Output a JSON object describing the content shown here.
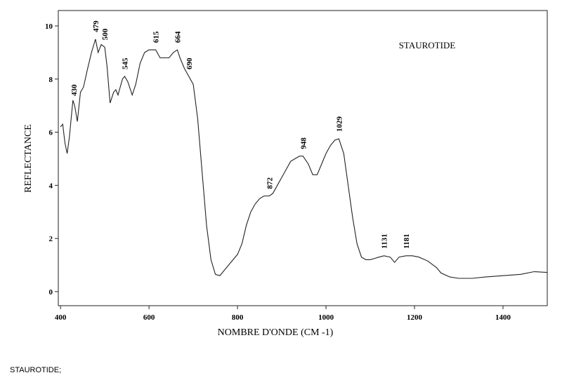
{
  "chart_data": {
    "type": "line",
    "title": "STAUROTIDE",
    "x_label": "NOMBRE D'ONDE (CM -1)",
    "y_label": "REFLECTANCE",
    "caption": "STAUROTIDE;",
    "xlim": [
      395,
      1500
    ],
    "ylim": [
      -0.53,
      10.58
    ],
    "xticks": [
      400,
      600,
      800,
      1000,
      1200,
      1400
    ],
    "yticks": [
      0,
      2,
      4,
      6,
      8,
      10
    ],
    "peak_labels": [
      430,
      479,
      500,
      545,
      615,
      664,
      690,
      872,
      948,
      1029,
      1131,
      1181
    ],
    "series": [
      {
        "color": "#222222",
        "x": [
          400,
          405,
          410,
          415,
          420,
          428,
          432,
          438,
          445,
          452,
          460,
          470,
          479,
          485,
          492,
          500,
          505,
          512,
          520,
          525,
          530,
          540,
          545,
          552,
          562,
          570,
          580,
          590,
          600,
          615,
          625,
          635,
          645,
          655,
          664,
          670,
          680,
          690,
          700,
          710,
          720,
          730,
          740,
          750,
          760,
          770,
          780,
          790,
          800,
          810,
          820,
          830,
          840,
          850,
          860,
          872,
          880,
          890,
          900,
          910,
          920,
          930,
          940,
          948,
          960,
          970,
          980,
          990,
          1000,
          1010,
          1020,
          1029,
          1040,
          1050,
          1060,
          1070,
          1080,
          1090,
          1100,
          1110,
          1120,
          1131,
          1145,
          1155,
          1165,
          1181,
          1195,
          1210,
          1230,
          1250,
          1260,
          1280,
          1300,
          1330,
          1360,
          1400,
          1440,
          1470,
          1500
        ],
        "values": [
          6.2,
          6.3,
          5.6,
          5.2,
          5.8,
          7.2,
          7.0,
          6.4,
          7.5,
          7.7,
          8.3,
          9.0,
          9.5,
          9.0,
          9.3,
          9.2,
          8.5,
          7.1,
          7.5,
          7.6,
          7.4,
          8.0,
          8.1,
          7.9,
          7.4,
          7.8,
          8.6,
          9.0,
          9.1,
          9.1,
          8.8,
          8.8,
          8.8,
          9.0,
          9.1,
          8.8,
          8.4,
          8.1,
          7.8,
          6.5,
          4.5,
          2.5,
          1.2,
          0.65,
          0.6,
          0.8,
          1.0,
          1.2,
          1.4,
          1.8,
          2.5,
          3.0,
          3.3,
          3.5,
          3.6,
          3.6,
          3.7,
          4.0,
          4.3,
          4.6,
          4.9,
          5.0,
          5.1,
          5.1,
          4.8,
          4.4,
          4.4,
          4.8,
          5.2,
          5.5,
          5.7,
          5.75,
          5.2,
          4.0,
          2.8,
          1.8,
          1.3,
          1.2,
          1.2,
          1.25,
          1.3,
          1.35,
          1.3,
          1.1,
          1.3,
          1.35,
          1.35,
          1.3,
          1.15,
          0.9,
          0.7,
          0.55,
          0.5,
          0.5,
          0.55,
          0.6,
          0.65,
          0.75,
          0.72
        ]
      }
    ]
  }
}
